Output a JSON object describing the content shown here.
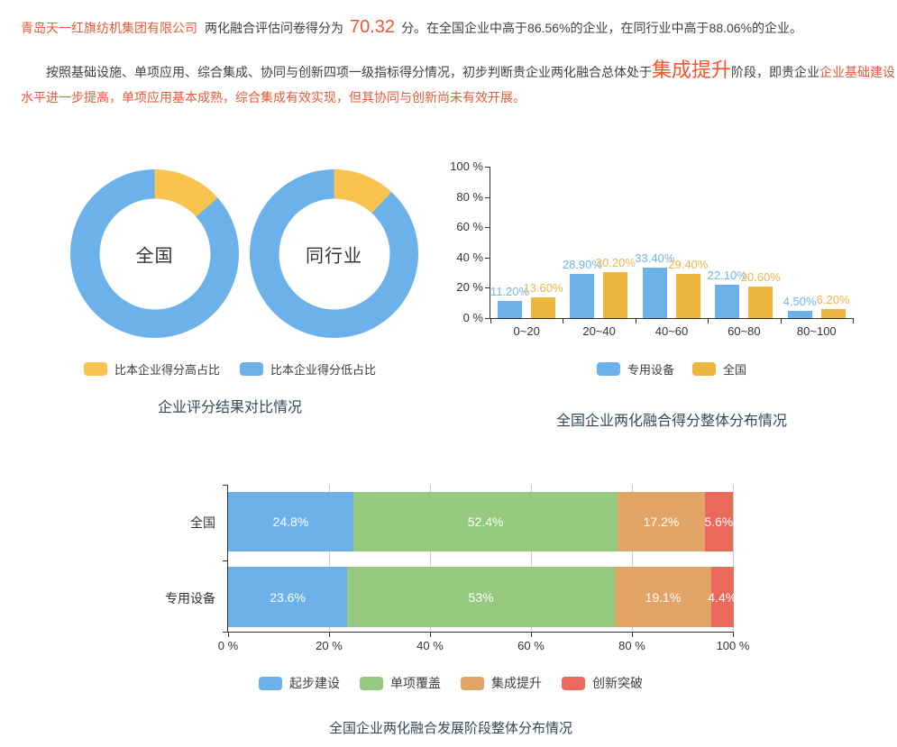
{
  "intro": {
    "company": "青岛天一红旗纺机集团有限公司",
    "text_after_company": "两化融合评估问卷得分为",
    "score": "70.32",
    "text_after_score": "分。在全国企业中高于86.56%的企业，在同行业中高于88.06%的企业。",
    "para2_seg1": "按照基础设施、单项应用、综合集成、协同与创新四项一级指标得分情况，初步判断贵企业两化融合总体处于",
    "para2_stage": "集成提升",
    "para2_seg2": "阶段，即贵企业",
    "para2_seg3": "企业基础建设水平进一步提高，单项应用基本成熟，综合集成有效实现，但其协同与创新尚未有效开展。"
  },
  "colors": {
    "blue": "#6cb1ea",
    "donut_yellow": "#f8c34f",
    "bar_yellow": "#eeb53e",
    "green": "#95ca7f",
    "orange": "#e3a567",
    "red": "#eb695b",
    "blue_label": "#74b4e8",
    "yellow_label": "#f0b64a",
    "accent_bright": "#f4562e",
    "accent_text": "#e25b3b",
    "title": "#33485c",
    "axis": "#333333"
  },
  "chart_data": [
    {
      "type": "pie",
      "title": "企业评分结果对比情况",
      "legend": [
        {
          "label": "比本企业得分高占比",
          "color": "#f8c34f"
        },
        {
          "label": "比本企业得分低占比",
          "color": "#6cb1ea"
        }
      ],
      "donuts": [
        {
          "label": "全国",
          "higher_pct": 13.44,
          "lower_pct": 86.56
        },
        {
          "label": "同行业",
          "higher_pct": 11.94,
          "lower_pct": 88.06
        }
      ]
    },
    {
      "type": "bar",
      "title": "全国企业两化融合得分整体分布情况",
      "categories": [
        "0~20",
        "20~40",
        "40~60",
        "60~80",
        "80~100"
      ],
      "series": [
        {
          "name": "专用设备",
          "color": "#6cb1ea",
          "label_color": "#74b4e8",
          "values": [
            11.2,
            28.9,
            33.4,
            22.1,
            4.5
          ],
          "labels": [
            "11.20%",
            "28.90%",
            "33.40%",
            "22.10%",
            "4.50%"
          ]
        },
        {
          "name": "全国",
          "color": "#eeb53e",
          "label_color": "#f0b64a",
          "values": [
            13.6,
            30.2,
            29.4,
            20.6,
            6.2
          ],
          "labels": [
            "13.60%",
            "30.20%",
            "29.40%",
            "20.60%",
            "6.20%"
          ]
        }
      ],
      "y_ticks": [
        "0 %",
        "20 %",
        "40 %",
        "60 %",
        "80 %",
        "100 %"
      ],
      "ylim": [
        0,
        100
      ],
      "legend_position": "bottom"
    },
    {
      "type": "bar",
      "orientation": "horizontal-stacked",
      "title": "全国企业两化融合发展阶段整体分布情况",
      "rows": [
        {
          "name": "全国",
          "values": [
            24.8,
            52.4,
            17.2,
            5.6
          ],
          "labels": [
            "24.8%",
            "52.4%",
            "17.2%",
            "5.6%"
          ]
        },
        {
          "name": "专用设备",
          "values": [
            23.6,
            53,
            19.1,
            4.4
          ],
          "labels": [
            "23.6%",
            "53%",
            "19.1%",
            "4.4%"
          ]
        }
      ],
      "segments": [
        {
          "name": "起步建设",
          "color": "#6cb1ea"
        },
        {
          "name": "单项覆盖",
          "color": "#95ca7f"
        },
        {
          "name": "集成提升",
          "color": "#e3a567"
        },
        {
          "name": "创新突破",
          "color": "#eb695b"
        }
      ],
      "x_ticks": [
        "0 %",
        "20 %",
        "40 %",
        "60 %",
        "80 %",
        "100 %"
      ],
      "xlim": [
        0,
        100
      ],
      "grid": true,
      "legend_position": "bottom"
    }
  ]
}
